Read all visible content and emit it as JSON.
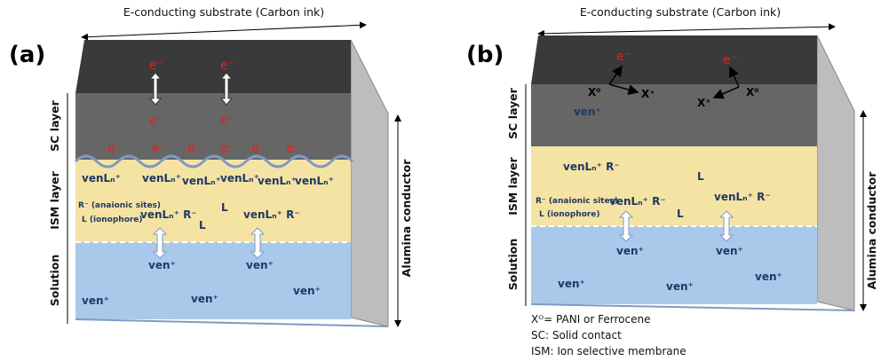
{
  "panels": [
    {
      "label": "(a)",
      "top_label": "E-conducting substrate (Carbon ink)",
      "side_label": "Alumina conductor",
      "layers": [
        "SC layer",
        "ISM layer",
        "Solution"
      ],
      "sc_species": [
        "e⁻",
        "e⁻",
        "e⁻",
        "e⁻",
        "e⁻",
        "e⁻",
        "e⁻",
        "e⁻",
        "e⁻",
        "e⁻"
      ],
      "ism_species": [
        "venLₙ⁺",
        "venLₙ⁺",
        "venLₙ⁺",
        "venLₙ⁺",
        "venLₙ⁺",
        "venLₙ⁺",
        "R⁻ (anaionic sites)",
        "L (ionophore)",
        "venLₙ⁺ R⁻",
        "L",
        "L",
        "venLₙ⁺ R⁻"
      ],
      "solution_species": [
        "ven⁺",
        "ven⁺",
        "ven⁺",
        "ven⁺",
        "ven⁺"
      ]
    },
    {
      "label": "(b)",
      "top_label": "E-conducting substrate (Carbon ink)",
      "side_label": "Alumina conductor",
      "layers": [
        "SC layer",
        "ISM layer",
        "Solution"
      ],
      "sc_species": [
        "e⁻",
        "e⁻",
        "X⁰",
        "X⁺",
        "X⁺",
        "X⁰",
        "ven⁺"
      ],
      "ism_species": [
        "venLₙ⁺ R⁻",
        "L",
        "R⁻ (anaionic sites)",
        "venLₙ⁺ R⁻",
        "L (ionophore)",
        "L",
        "venLₙ⁺ R⁻"
      ],
      "solution_species": [
        "ven⁺",
        "ven⁺",
        "ven⁺",
        "ven⁺",
        "ven⁺"
      ],
      "notes": [
        "Xᴼ= PANI  or Ferrocene",
        "SC: Solid contact",
        "ISM: Ion selective membrane"
      ]
    }
  ]
}
